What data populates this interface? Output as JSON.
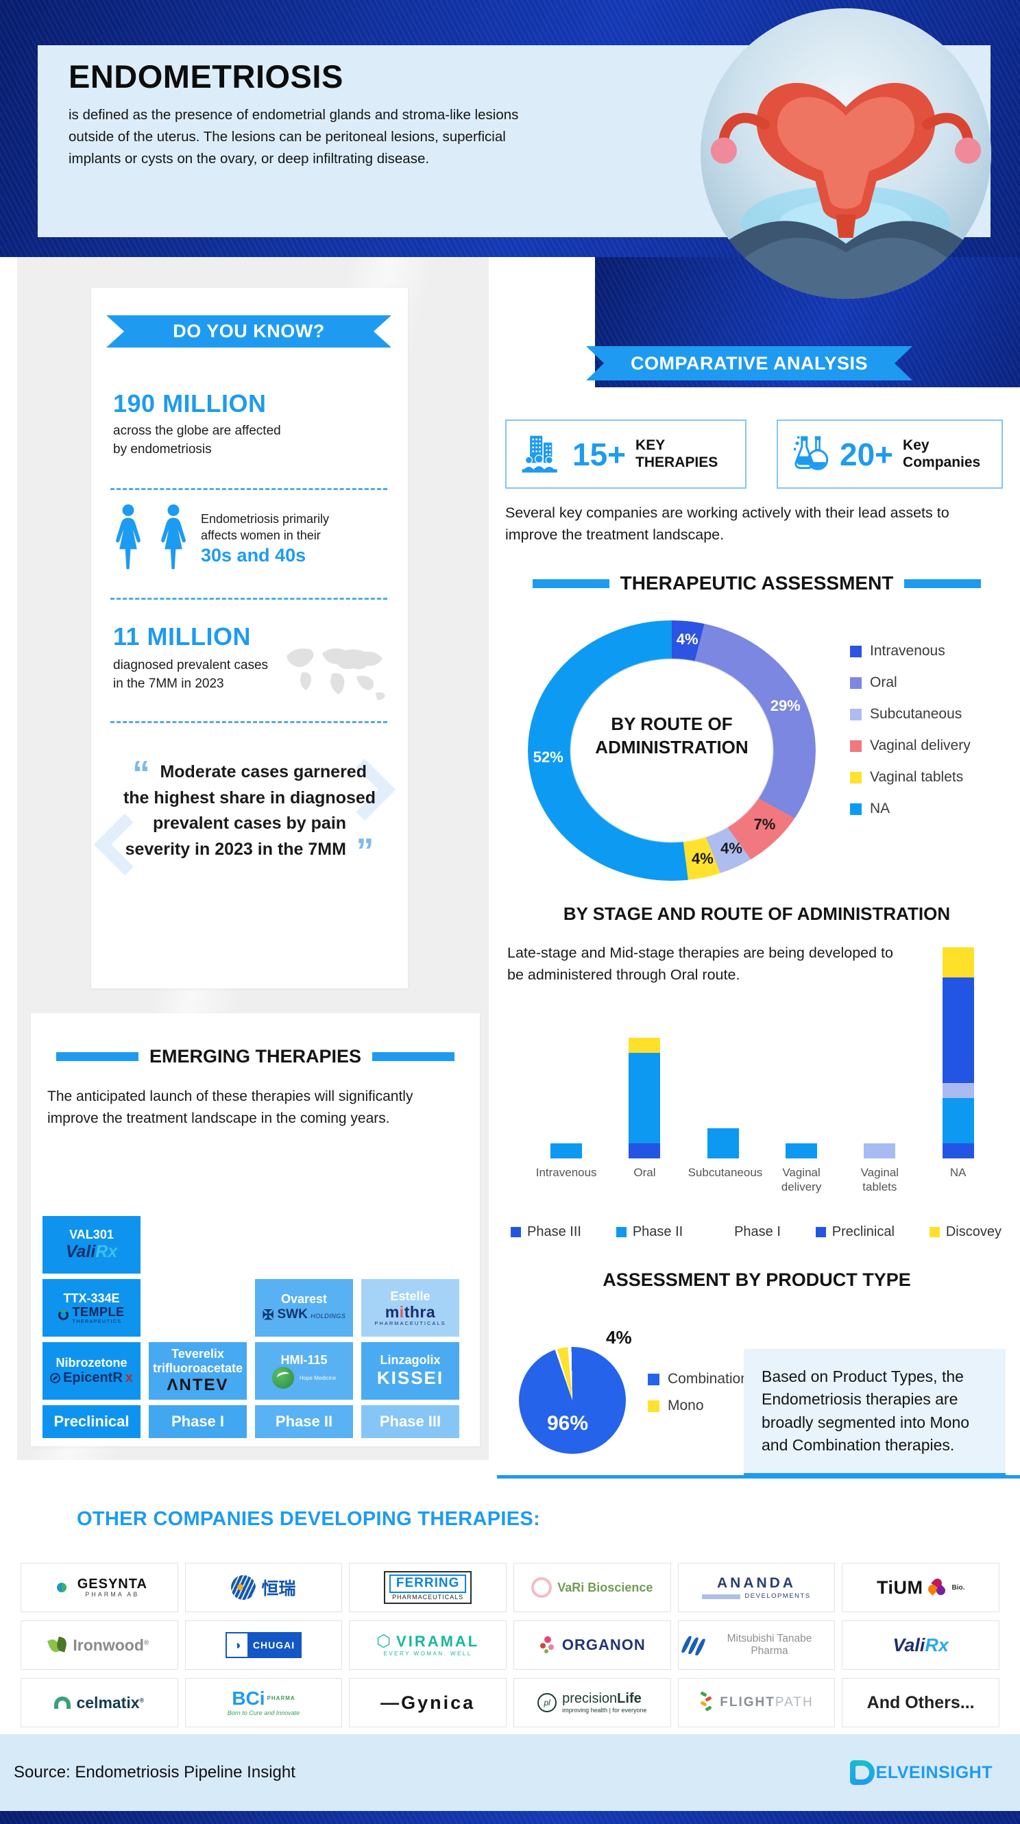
{
  "header": {
    "title": "ENDOMETRIOSIS",
    "description": "is defined as the presence of endometrial glands and stroma-like lesions outside of the uterus. The lesions can be peritoneal lesions, superficial implants or cysts on the ovary, or deep infiltrating disease."
  },
  "do_you_know": {
    "banner": "DO YOU KNOW?",
    "stat1_value": "190 MILLION",
    "stat1_caption": "across the globe are affected by endometriosis",
    "stat2_lead": "Endometriosis primarily affects women in their",
    "stat2_highlight": "30s and 40s",
    "stat3_value": "11 MILLION",
    "stat3_caption": "diagnosed prevalent cases in the 7MM in 2023",
    "quote": "Moderate cases garnered the highest share in diagnosed prevalent cases by pain severity in 2023 in the 7MM"
  },
  "comparative": {
    "banner": "COMPARATIVE ANALYSIS",
    "stats": [
      {
        "value": "15+",
        "label_line1": "KEY",
        "label_line2": "THERAPIES",
        "icon": "key-therapies"
      },
      {
        "value": "20+",
        "label_line1": "Key",
        "label_line2": "Companies",
        "icon": "key-companies"
      }
    ],
    "note": "Several key companies are working actively with their lead assets to improve the treatment landscape."
  },
  "therapeutic_assessment": {
    "heading": "THERAPEUTIC ASSESSMENT"
  },
  "product_type": {
    "heading": "ASSESSMENT BY PRODUCT TYPE",
    "note": "Based on Product Types, the Endometriosis therapies are broadly segmented into Mono and Combination therapies."
  },
  "emerging": {
    "heading": "EMERGING THERAPIES",
    "note": "The anticipated launch of these therapies will significantly improve the treatment landscape in the coming years.",
    "grid": [
      {
        "row": 1,
        "col": 1,
        "drug": "VAL301",
        "company": "ValiRx",
        "style": "valirx",
        "bg": "#0e94ee"
      },
      {
        "row": 2,
        "col": 1,
        "drug": "TTX-334E",
        "company": "TEMPLE",
        "company_sub": "THERAPEUTICS",
        "style": "temple",
        "bg": "#0e94ee"
      },
      {
        "row": 2,
        "col": 3,
        "drug": "Ovarest",
        "company": "SWK",
        "company_sub": "HOLDINGS",
        "style": "swk",
        "bg": "#58b1f3"
      },
      {
        "row": 2,
        "col": 4,
        "drug": "Estelle",
        "company": "mithra",
        "company_sub": "PHARMACEUTICALS",
        "style": "mithra",
        "bg": "#a5d3f8"
      },
      {
        "row": 3,
        "col": 1,
        "drug": "Nibrozetone",
        "company": "EpicentRx",
        "style": "epicentrx",
        "bg": "#0e94ee"
      },
      {
        "row": 3,
        "col": 2,
        "drug": "Teverelix trifluoroacetate",
        "company": "ΛNTEV",
        "style": "antev",
        "bg": "#47a9f1"
      },
      {
        "row": 3,
        "col": 3,
        "drug": "HMI-115",
        "company": "Hope Medicine",
        "style": "hope",
        "bg": "#58b1f3"
      },
      {
        "row": 3,
        "col": 4,
        "drug": "Linzagolix",
        "company": "KISSEI",
        "style": "kissei",
        "bg": "#4aabf2"
      }
    ],
    "phases": [
      {
        "label": "Preclinical",
        "bg": "#0e94ee"
      },
      {
        "label": "Phase I",
        "bg": "#42a7f1"
      },
      {
        "label": "Phase II",
        "bg": "#59b2f3"
      },
      {
        "label": "Phase III",
        "bg": "#86c6f6"
      }
    ]
  },
  "other_companies": {
    "heading": "OTHER COMPANIES DEVELOPING THERAPIES:",
    "logos": [
      {
        "name": "GESYNTA",
        "sub": "PHARMA AB",
        "style": "gesynta"
      },
      {
        "name": "恒瑞",
        "style": "hengrui"
      },
      {
        "name": "FERRING",
        "sub": "PHARMACEUTICALS",
        "style": "ferring"
      },
      {
        "name": "VaRi Bioscience",
        "style": "vari"
      },
      {
        "name": "ANANDA",
        "sub": "DEVELOPMENTS",
        "style": "ananda"
      },
      {
        "name": "TiUM",
        "sub": "Bio.",
        "style": "tium"
      },
      {
        "name": "Ironwood",
        "style": "ironwood"
      },
      {
        "name": "CHUGAI",
        "style": "chugai"
      },
      {
        "name": "VIRAMAL",
        "sub": "EVERY WOMAN. WELL",
        "style": "viramal"
      },
      {
        "name": "ORGANON",
        "style": "organon"
      },
      {
        "name": "Mitsubishi Tanabe Pharma",
        "style": "mtp"
      },
      {
        "name": "ValiRx",
        "style": "valirx"
      },
      {
        "name": "celmatix",
        "style": "celmatix"
      },
      {
        "name": "BCi",
        "sub": "Born to Cure and Innovate",
        "style": "bci"
      },
      {
        "name": "Gynica",
        "style": "gynica"
      },
      {
        "name": "precisionLife",
        "sub": "improving health | for everyone",
        "style": "plife"
      },
      {
        "name": "FLIGHTPATH",
        "style": "flightpath"
      },
      {
        "name": "And Others...",
        "style": "others"
      }
    ]
  },
  "footer": {
    "source": "Source: Endometriosis Pipeline Insight",
    "brand": "DELVEINSIGHT"
  },
  "chart_data": [
    {
      "id": "route_donut",
      "type": "pie",
      "subtype": "donut",
      "title": "BY ROUTE OF ADMINISTRATION",
      "slices": [
        {
          "label": "Intravenous",
          "value": 4,
          "color": "#2d53e2",
          "text": "#ffffff"
        },
        {
          "label": "Oral",
          "value": 29,
          "color": "#7b87e0",
          "text": "#ffffff"
        },
        {
          "label": "Vaginal delivery",
          "value": 7,
          "color": "#f2787f",
          "text": "#1a1a1a"
        },
        {
          "label": "Subcutaneous",
          "value": 4,
          "color": "#aebcf0",
          "text": "#1a1a1a"
        },
        {
          "label": "Vaginal tablets",
          "value": 4,
          "color": "#ffe22e",
          "text": "#1a1a1a"
        },
        {
          "label": "NA",
          "value": 52,
          "color": "#0d9af2",
          "text": "#ffffff"
        }
      ],
      "legend_order": [
        "Intravenous",
        "Oral",
        "Subcutaneous",
        "Vaginal delivery",
        "Vaginal tablets",
        "NA"
      ],
      "legend_position": "right"
    },
    {
      "id": "stage_route_bars",
      "type": "bar",
      "stacked": true,
      "title": "BY STAGE AND ROUTE OF ADMINISTRATION",
      "annotation": "Late-stage and Mid-stage therapies are being developed to be administered through Oral route.",
      "categories": [
        "Intravenous",
        "Oral",
        "Subcutaneous",
        "Vaginal delivery",
        "Vaginal tablets",
        "NA"
      ],
      "series": [
        {
          "name": "Phase III",
          "color": "#2355e4",
          "values": [
            0,
            1,
            0,
            0,
            0,
            1
          ]
        },
        {
          "name": "Phase II",
          "color": "#0d98f2",
          "values": [
            1,
            6,
            2,
            1,
            0,
            3
          ]
        },
        {
          "name": "Phase I",
          "color": "#a9bbf3",
          "values": [
            0,
            0,
            0,
            0,
            1,
            1
          ]
        },
        {
          "name": "Preclinical",
          "color": "#2355e4",
          "values": [
            0,
            0,
            0,
            0,
            0,
            7
          ]
        },
        {
          "name": "Discovey",
          "color": "#fee029",
          "values": [
            0,
            1,
            0,
            0,
            0,
            2
          ]
        }
      ],
      "legend": [
        {
          "label": "Phase III",
          "swatch": "#2355e4"
        },
        {
          "label": "Phase II",
          "swatch": "#0d98f2"
        },
        {
          "label": "Phase I",
          "swatch": "#ffffff"
        },
        {
          "label": "Preclinical",
          "swatch": "#2355e4"
        },
        {
          "label": "Discovey",
          "swatch": "#fee029"
        }
      ],
      "ylim": [
        0,
        14
      ],
      "grid": false,
      "legend_position": "bottom"
    },
    {
      "id": "product_type_pie",
      "type": "pie",
      "slices": [
        {
          "label": "Combination",
          "value": 96,
          "color": "#2563eb",
          "text": "#ffffff"
        },
        {
          "label": "Mono",
          "value": 4,
          "color": "#ffe22e",
          "text": "#1a1a1a"
        }
      ],
      "legend_position": "right"
    }
  ]
}
